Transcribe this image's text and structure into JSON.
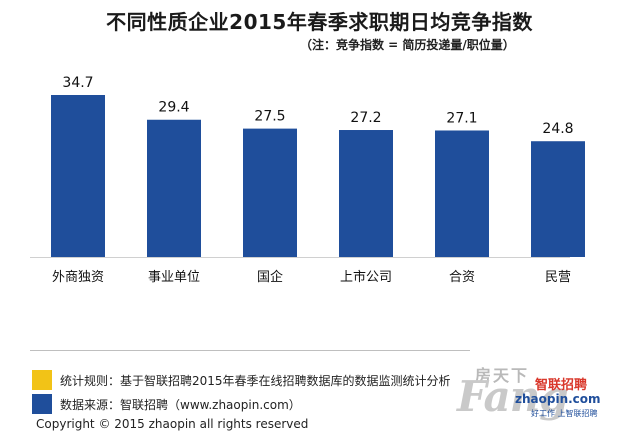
{
  "chart_data": {
    "type": "bar",
    "title": "不同性质企业2015年春季求职期日均竞争指数",
    "subtitle": "（注：竞争指数 = 简历投递量/职位量）",
    "categories": [
      "外商独资",
      "事业单位",
      "国企",
      "上市公司",
      "合资",
      "民营"
    ],
    "values": [
      34.7,
      29.4,
      27.5,
      27.2,
      27.1,
      24.8
    ],
    "value_labels": [
      "34.7",
      "29.4",
      "27.5",
      "27.2",
      "27.1",
      "24.8"
    ],
    "bar_color": "#1f4e9b",
    "ylim": [
      0,
      40
    ],
    "grid": false,
    "legend": "bottom-left"
  },
  "legend": {
    "rule_text": "统计规则：基于智联招聘2015年春季在线招聘数据库的数据监测统计分析",
    "source_text": "数据来源：智联招聘（www.zhaopin.com）",
    "rule_color": "#f2c317",
    "source_color": "#1f4e9b"
  },
  "copyright": "Copyright   ©   2015 zhaopin all rights reserved",
  "watermark": {
    "cn": "房天下",
    "fang": "Fang",
    "brand": "智联招聘",
    "url": "zhaopin.com",
    "tagline": "好工作 上智联招聘"
  }
}
